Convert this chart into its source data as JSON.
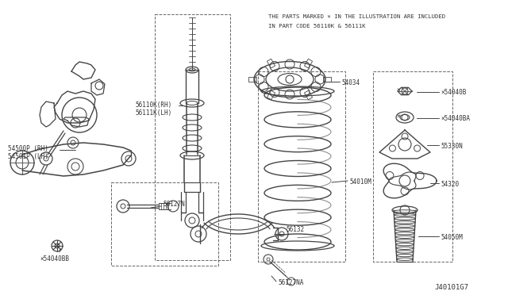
{
  "bg_color": "#ffffff",
  "note_line1": "THE PARTS MARKED × IN THE ILLUSTRATION ARE INCLUDED",
  "note_line2": "IN PART CODE 56110K & 56111K",
  "diagram_id": "J40101G7",
  "lc": "#444444",
  "tc": "#333333",
  "dc": "#666666",
  "figsize": [
    6.4,
    3.72
  ],
  "dpi": 100
}
